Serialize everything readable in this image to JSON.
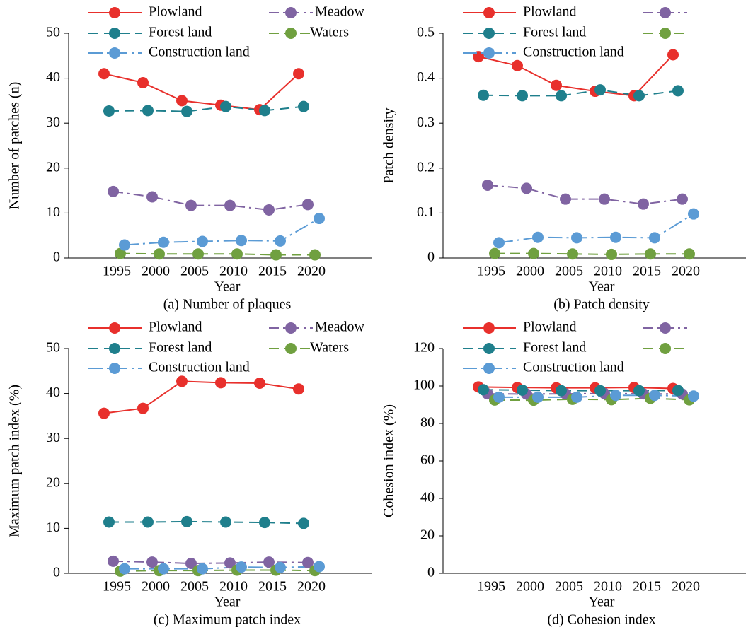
{
  "chart_data": [
    {
      "type": "line",
      "title": "(a) Number of plaques",
      "x_label": "Year",
      "y_label": "Number of patches (n)",
      "categories": [
        "1995",
        "2000",
        "2005",
        "2010",
        "2015",
        "2020"
      ],
      "ylim": [
        0,
        50
      ],
      "yticks": [
        0,
        10,
        20,
        30,
        40,
        50
      ],
      "series": [
        {
          "name": "Plowland",
          "color": "#e8302c",
          "line_style": "solid",
          "values": [
            41,
            39,
            35,
            34,
            33,
            41
          ]
        },
        {
          "name": "Meadow",
          "color": "#8064a2",
          "line_style": "dashdot",
          "values": [
            14.8,
            13.6,
            11.7,
            11.7,
            10.7,
            11.9
          ]
        },
        {
          "name": "Forest land",
          "color": "#1f7f8c",
          "line_style": "dash",
          "values": [
            32.7,
            32.8,
            32.6,
            33.7,
            32.8,
            33.7
          ]
        },
        {
          "name": "Waters",
          "color": "#70a040",
          "line_style": "dash",
          "values": [
            1,
            0.9,
            0.9,
            0.9,
            0.7,
            0.7
          ]
        },
        {
          "name": "Construction land",
          "color": "#5b9bd5",
          "line_style": "longdashdot",
          "values": [
            2.9,
            3.5,
            3.7,
            3.9,
            3.8,
            8.8
          ]
        }
      ]
    },
    {
      "type": "line",
      "title": "(b) Patch density",
      "x_label": "Year",
      "y_label": "Patch density",
      "categories": [
        "1995",
        "2000",
        "2005",
        "2010",
        "2015",
        "2020"
      ],
      "ylim": [
        0,
        0.5
      ],
      "yticks": [
        0,
        0.1,
        0.2,
        0.3,
        0.4,
        0.5
      ],
      "series": [
        {
          "name": "Plowland",
          "color": "#e8302c",
          "line_style": "solid",
          "values": [
            0.448,
            0.428,
            0.384,
            0.371,
            0.361,
            0.452
          ]
        },
        {
          "color": "#8064a2",
          "line_style": "dashdot",
          "values": [
            0.162,
            0.155,
            0.131,
            0.131,
            0.12,
            0.131
          ]
        },
        {
          "name": "Forest land",
          "color": "#1f7f8c",
          "line_style": "dash",
          "values": [
            0.362,
            0.361,
            0.361,
            0.374,
            0.361,
            0.372
          ]
        },
        {
          "color": "#70a040",
          "line_style": "dash",
          "values": [
            0.01,
            0.01,
            0.009,
            0.008,
            0.009,
            0.009
          ]
        },
        {
          "name": "Construction land",
          "color": "#5b9bd5",
          "line_style": "longdashdot",
          "values": [
            0.034,
            0.046,
            0.045,
            0.046,
            0.045,
            0.098
          ]
        }
      ]
    },
    {
      "type": "line",
      "title": "(c) Maximum patch index",
      "x_label": "Year",
      "y_label": "Maximum patch index (%)",
      "categories": [
        "1995",
        "2000",
        "2005",
        "2010",
        "2015",
        "2020"
      ],
      "ylim": [
        0,
        50
      ],
      "yticks": [
        0,
        10,
        20,
        30,
        40,
        50
      ],
      "series": [
        {
          "name": "Plowland",
          "color": "#e8302c",
          "line_style": "solid",
          "values": [
            35.6,
            36.7,
            42.7,
            42.4,
            42.3,
            41
          ]
        },
        {
          "name": "Meadow",
          "color": "#8064a2",
          "line_style": "dashdot",
          "values": [
            2.7,
            2.5,
            2.2,
            2.3,
            2.5,
            2.4
          ]
        },
        {
          "name": "Forest land",
          "color": "#1f7f8c",
          "line_style": "dash",
          "values": [
            11.4,
            11.4,
            11.5,
            11.4,
            11.3,
            11.1
          ]
        },
        {
          "name": "Waters",
          "color": "#70a040",
          "line_style": "dash",
          "values": [
            0.5,
            0.6,
            0.6,
            0.7,
            0.7,
            0.6
          ]
        },
        {
          "name": "Construction land",
          "color": "#5b9bd5",
          "line_style": "longdashdot",
          "values": [
            1,
            1,
            1,
            1.4,
            1.3,
            1.5
          ]
        }
      ]
    },
    {
      "type": "line",
      "title": "(d) Cohesion index",
      "x_label": "Year",
      "y_label": "Cohesion index (%)",
      "categories": [
        "1995",
        "2000",
        "2005",
        "2010",
        "2015",
        "2020"
      ],
      "ylim": [
        0,
        120
      ],
      "yticks": [
        0,
        20,
        40,
        60,
        80,
        100,
        120
      ],
      "series": [
        {
          "name": "Plowland",
          "color": "#e8302c",
          "line_style": "solid",
          "values": [
            99.5,
            99.2,
            99,
            99,
            99.2,
            98.7
          ]
        },
        {
          "color": "#8064a2",
          "line_style": "dashdot",
          "values": [
            95.8,
            95.7,
            95.8,
            96,
            95.8,
            95.7
          ]
        },
        {
          "name": "Forest land",
          "color": "#1f7f8c",
          "line_style": "dash",
          "values": [
            98,
            97.8,
            97.5,
            97.5,
            97.5,
            97.6
          ]
        },
        {
          "color": "#70a040",
          "line_style": "dash",
          "values": [
            92.5,
            92.4,
            92.9,
            92.7,
            93.4,
            92.6
          ]
        },
        {
          "name": "Construction land",
          "color": "#5b9bd5",
          "line_style": "longdashdot",
          "values": [
            94,
            94,
            94,
            95,
            95,
            94.6
          ]
        }
      ]
    }
  ]
}
